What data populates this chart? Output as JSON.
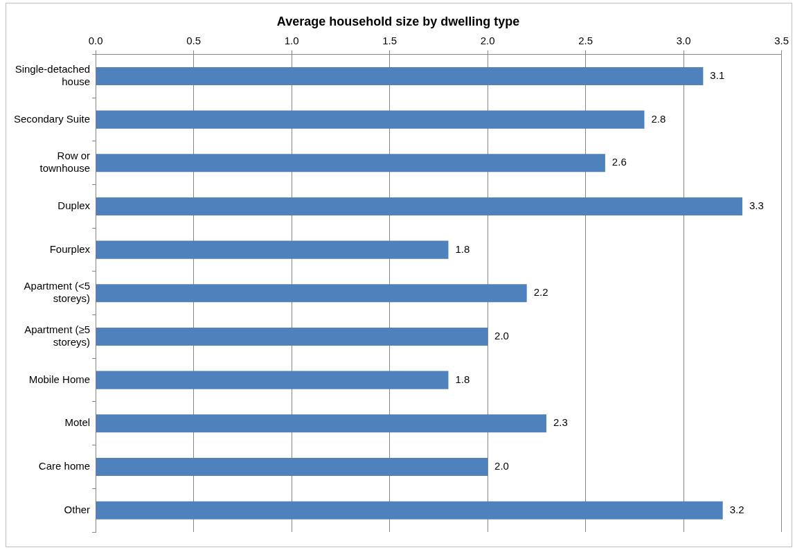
{
  "chart_data": {
    "type": "bar",
    "orientation": "horizontal",
    "title": "Average household size by dwelling type",
    "categories": [
      "Single-detached house",
      "Secondary Suite",
      "Row or townhouse",
      "Duplex",
      "Fourplex",
      "Apartment (<5 storeys)",
      "Apartment (≥5 storeys)",
      "Mobile Home",
      "Motel",
      "Care home",
      "Other"
    ],
    "values": [
      3.1,
      2.8,
      2.6,
      3.3,
      1.8,
      2.2,
      2.0,
      1.8,
      2.3,
      2.0,
      3.2
    ],
    "value_labels": [
      "3.1",
      "2.8",
      "2.6",
      "3.3",
      "1.8",
      "2.2",
      "2.0",
      "1.8",
      "2.3",
      "2.0",
      "3.2"
    ],
    "color": "#4f81bd",
    "xlim": [
      0,
      3.5
    ],
    "xticks": [
      {
        "value": 0,
        "label": "0.0"
      },
      {
        "value": 0.5,
        "label": "0.5"
      },
      {
        "value": 1,
        "label": "1.0"
      },
      {
        "value": 1.5,
        "label": "1.5"
      },
      {
        "value": 2,
        "label": "2.0"
      },
      {
        "value": 2.5,
        "label": "2.5"
      },
      {
        "value": 3,
        "label": "3.0"
      },
      {
        "value": 3.5,
        "label": "3.5"
      }
    ],
    "grid": "x"
  }
}
